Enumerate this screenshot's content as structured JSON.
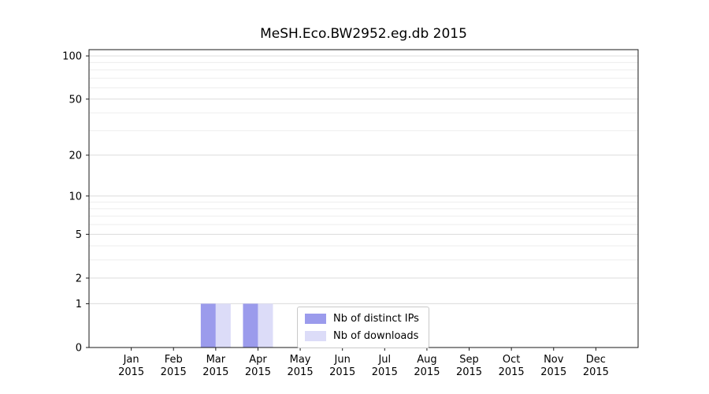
{
  "chart_data": {
    "type": "bar",
    "title": "MeSH.Eco.BW2952.eg.db 2015",
    "months": [
      "Jan",
      "Feb",
      "Mar",
      "Apr",
      "May",
      "Jun",
      "Jul",
      "Aug",
      "Sep",
      "Oct",
      "Nov",
      "Dec"
    ],
    "year": "2015",
    "y_ticks": [
      0,
      1,
      2,
      5,
      10,
      20,
      50,
      100
    ],
    "y_scale": "log1p",
    "ylim": [
      0,
      110
    ],
    "grid": true,
    "legend_position": "lower center",
    "series": [
      {
        "name": "Nb of distinct IPs",
        "color": "#9b9bec",
        "values": [
          0,
          0,
          1,
          1,
          0,
          0,
          0,
          0,
          0,
          0,
          0,
          0
        ]
      },
      {
        "name": "Nb of downloads",
        "color": "#dcdcf8",
        "values": [
          0,
          0,
          1,
          1,
          0,
          0,
          0,
          0,
          0,
          0,
          0,
          0
        ]
      }
    ]
  }
}
